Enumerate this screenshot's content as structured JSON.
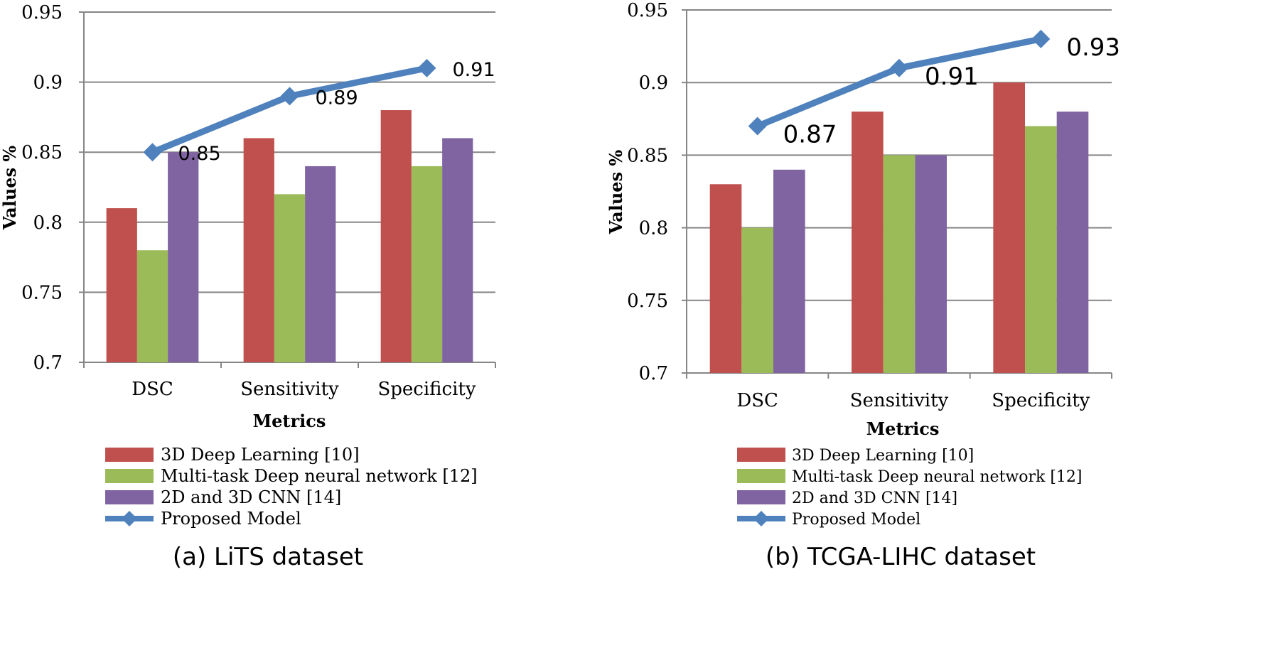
{
  "chart_data": [
    {
      "type": "bar",
      "subtitle": "(a) LiTS dataset",
      "categories": [
        "DSC",
        "Sensitivity",
        "Specificity"
      ],
      "series": [
        {
          "name": "3D Deep Learning [10]",
          "color": "#c0504d",
          "values": [
            0.81,
            0.86,
            0.88
          ]
        },
        {
          "name": "Multi-task Deep neural network [12]",
          "color": "#9bbb59",
          "values": [
            0.78,
            0.82,
            0.84
          ]
        },
        {
          "name": "2D and 3D CNN [14]",
          "color": "#8064a2",
          "values": [
            0.85,
            0.84,
            0.86
          ]
        }
      ],
      "line": {
        "name": "Proposed Model",
        "color": "#4f81bd",
        "values": [
          0.85,
          0.89,
          0.91
        ],
        "labels": [
          "0.85",
          "0.89",
          "0.91"
        ]
      },
      "xlabel": "Metrics",
      "ylabel": "Values %",
      "ylim": [
        0.7,
        0.95
      ],
      "yticks": [
        "0.7",
        "0.75",
        "0.8",
        "0.85",
        "0.9",
        "0.95"
      ],
      "grid": true,
      "legend": "bottom"
    },
    {
      "type": "bar",
      "subtitle": "(b) TCGA-LIHC dataset",
      "categories": [
        "DSC",
        "Sensitivity",
        "Specificity"
      ],
      "series": [
        {
          "name": "3D Deep Learning [10]",
          "color": "#c0504d",
          "values": [
            0.83,
            0.88,
            0.9
          ]
        },
        {
          "name": "Multi-task Deep neural network [12]",
          "color": "#9bbb59",
          "values": [
            0.8,
            0.85,
            0.87
          ]
        },
        {
          "name": "2D and 3D CNN [14]",
          "color": "#8064a2",
          "values": [
            0.84,
            0.85,
            0.88
          ]
        }
      ],
      "line": {
        "name": "Proposed Model",
        "color": "#4f81bd",
        "values": [
          0.87,
          0.91,
          0.93
        ],
        "labels": [
          "0.87",
          "0.91",
          "0.93"
        ]
      },
      "xlabel": "Metrics",
      "ylabel": "Values %",
      "ylim": [
        0.7,
        0.95
      ],
      "yticks": [
        "0.7",
        "0.75",
        "0.8",
        "0.85",
        "0.9",
        "0.95"
      ],
      "grid": true,
      "legend": "bottom"
    }
  ]
}
